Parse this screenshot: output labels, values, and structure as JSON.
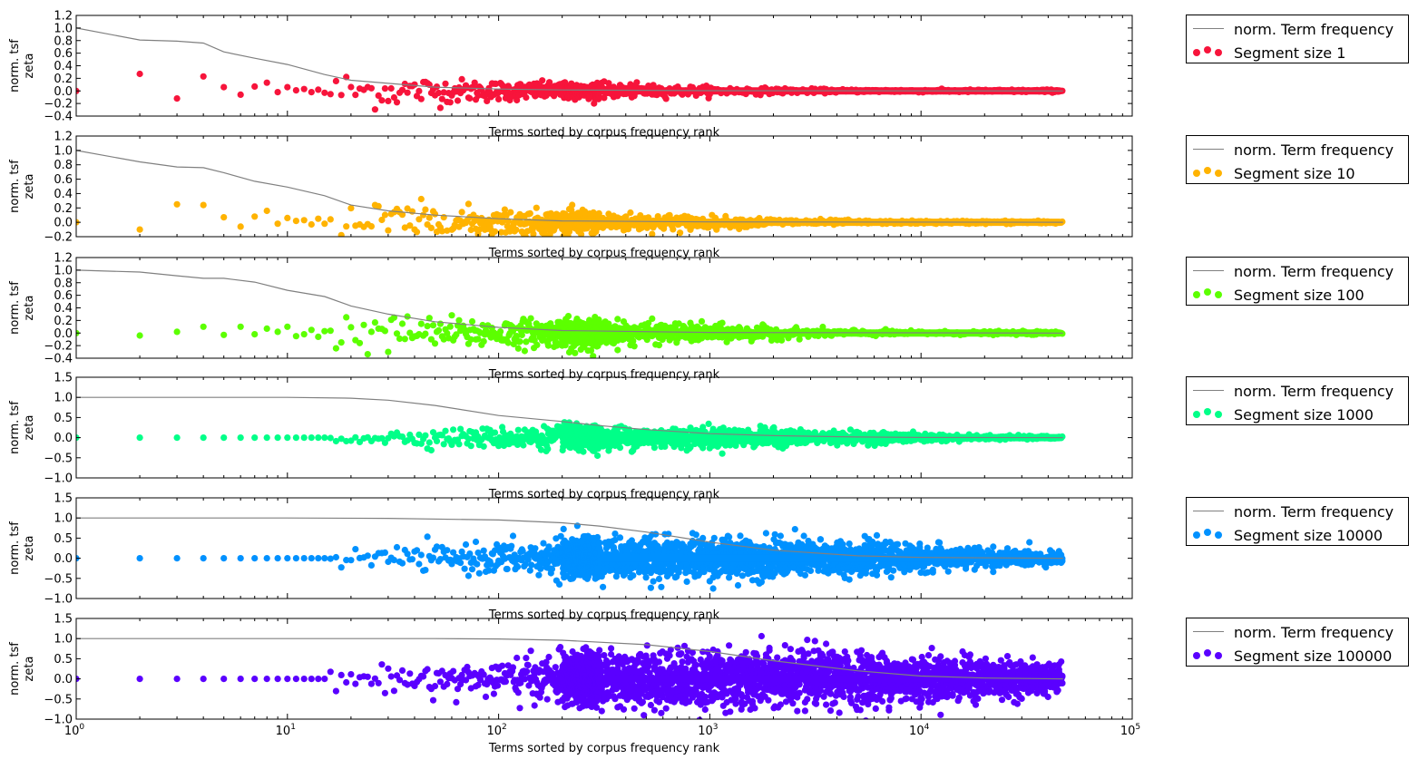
{
  "figure": {
    "xlabel": "Terms sorted by corpus frequency rank",
    "ylabel_line1": "norm. tsf",
    "ylabel_line2": "zeta",
    "x_scale": "log",
    "x_range": [
      1,
      100000
    ],
    "x_ticks": [
      {
        "value": 1,
        "base": "10",
        "exp": "0"
      },
      {
        "value": 10,
        "base": "10",
        "exp": "1"
      },
      {
        "value": 100,
        "base": "10",
        "exp": "2"
      },
      {
        "value": 1000,
        "base": "10",
        "exp": "3"
      },
      {
        "value": 10000,
        "base": "10",
        "exp": "4"
      },
      {
        "value": 100000,
        "base": "10",
        "exp": "5"
      }
    ],
    "line_color": "#808080",
    "line_legend": "norm. Term frequency",
    "n_terms": 47000
  },
  "chart_data": [
    {
      "type": "scatter",
      "series": [
        {
          "name": "norm. Term frequency",
          "kind": "line",
          "x": [
            1,
            2,
            3,
            4,
            5,
            7,
            10,
            15,
            20,
            30,
            50,
            100,
            200,
            1000,
            47000
          ],
          "y": [
            1.0,
            0.81,
            0.79,
            0.76,
            0.62,
            0.52,
            0.42,
            0.26,
            0.17,
            0.12,
            0.06,
            0.03,
            0.015,
            0.003,
            0.0
          ]
        },
        {
          "name": "Segment size 1",
          "kind": "points",
          "color": "#f7143b",
          "x": [
            1,
            2,
            3,
            4,
            5,
            6,
            7,
            8,
            9,
            10,
            11,
            12,
            13,
            14,
            15
          ],
          "y": [
            0.0,
            0.27,
            -0.12,
            0.23,
            0.06,
            -0.06,
            0.07,
            0.13,
            -0.02,
            0.06,
            0.01,
            0.03,
            -0.02,
            0.02,
            -0.03
          ],
          "spread_start": 0.2,
          "spread_peak_x": 60,
          "spread_sigma": 1.0,
          "spread_end": 0.012
        }
      ],
      "ylim": [
        -0.4,
        1.2
      ],
      "yticks": [
        "1.2",
        "1.0",
        "0.8",
        "0.6",
        "0.4",
        "0.2",
        "0.0",
        "−0.2",
        "−0.4"
      ],
      "xlabel": "Terms sorted by corpus frequency rank",
      "ylabel": "norm. tsf zeta"
    },
    {
      "type": "scatter",
      "series": [
        {
          "name": "norm. Term frequency",
          "kind": "line",
          "x": [
            1,
            2,
            3,
            4,
            5,
            7,
            10,
            15,
            20,
            30,
            50,
            100,
            200,
            1000,
            47000
          ],
          "y": [
            1.0,
            0.84,
            0.77,
            0.76,
            0.69,
            0.57,
            0.49,
            0.37,
            0.24,
            0.16,
            0.1,
            0.05,
            0.02,
            0.005,
            0.0
          ]
        },
        {
          "name": "Segment size 10",
          "kind": "points",
          "color": "#ffb300",
          "x": [
            1,
            2,
            3,
            4,
            5,
            6,
            7,
            8,
            9,
            10,
            11,
            12,
            13,
            14,
            15
          ],
          "y": [
            0.0,
            -0.1,
            0.25,
            0.24,
            0.07,
            -0.06,
            0.08,
            0.16,
            -0.02,
            0.06,
            0.02,
            0.03,
            -0.03,
            0.05,
            -0.02
          ],
          "spread_start": 0.2,
          "spread_peak_x": 60,
          "spread_sigma": 1.0,
          "spread_end": 0.012
        }
      ],
      "ylim": [
        -0.2,
        1.2
      ],
      "yticks": [
        "1.2",
        "1.0",
        "0.8",
        "0.6",
        "0.4",
        "0.2",
        "0.0",
        "−0.2"
      ],
      "xlabel": "Terms sorted by corpus frequency rank",
      "ylabel": "norm. tsf zeta"
    },
    {
      "type": "scatter",
      "series": [
        {
          "name": "norm. Term frequency",
          "kind": "line",
          "x": [
            1,
            2,
            3,
            4,
            5,
            7,
            10,
            15,
            20,
            30,
            50,
            100,
            200,
            1000,
            47000
          ],
          "y": [
            1.0,
            0.97,
            0.91,
            0.87,
            0.87,
            0.81,
            0.68,
            0.58,
            0.43,
            0.3,
            0.18,
            0.09,
            0.04,
            0.01,
            0.0
          ]
        },
        {
          "name": "Segment size 100",
          "kind": "points",
          "color": "#5cff00",
          "x": [
            1,
            2,
            3,
            4,
            5,
            6,
            7,
            8,
            9,
            10,
            11,
            12,
            13,
            14,
            15
          ],
          "y": [
            0.0,
            -0.04,
            0.02,
            0.1,
            -0.03,
            0.1,
            -0.02,
            0.07,
            0.02,
            0.1,
            -0.05,
            -0.02,
            0.05,
            -0.06,
            0.03
          ],
          "spread_start": 0.15,
          "spread_peak_x": 100,
          "spread_sigma": 1.0,
          "spread_end": 0.015
        }
      ],
      "ylim": [
        -0.4,
        1.2
      ],
      "yticks": [
        "1.2",
        "1.0",
        "0.8",
        "0.6",
        "0.4",
        "0.2",
        "0.0",
        "−0.2",
        "−0.4"
      ],
      "xlabel": "Terms sorted by corpus frequency rank",
      "ylabel": "norm. tsf zeta"
    },
    {
      "type": "scatter",
      "series": [
        {
          "name": "norm. Term frequency",
          "kind": "line",
          "x": [
            1,
            5,
            10,
            20,
            30,
            50,
            100,
            200,
            300,
            500,
            1000,
            2000,
            5000,
            10000,
            47000
          ],
          "y": [
            1.0,
            1.0,
            1.0,
            0.98,
            0.93,
            0.8,
            0.55,
            0.4,
            0.3,
            0.2,
            0.1,
            0.05,
            0.015,
            0.005,
            0.0
          ]
        },
        {
          "name": "Segment size 1000",
          "kind": "points",
          "color": "#00ff88",
          "x": [
            1,
            2,
            3,
            4,
            5,
            6,
            7,
            8,
            9,
            10,
            11,
            12,
            13,
            14,
            15
          ],
          "y": [
            0.0,
            0.0,
            0.0,
            0.0,
            0.0,
            0.0,
            0.0,
            0.0,
            0.0,
            0.0,
            0.0,
            0.0,
            0.0,
            0.0,
            0.0
          ],
          "spread_start": 0.0,
          "spread_peak_x": 300,
          "spread_sigma": 1.1,
          "spread_end": 0.02
        }
      ],
      "ylim": [
        -1.0,
        1.5
      ],
      "yticks": [
        "1.5",
        "1.0",
        "0.5",
        "0.0",
        "−0.5",
        "−1.0"
      ],
      "xlabel": "Terms sorted by corpus frequency rank",
      "ylabel": "norm. tsf zeta"
    },
    {
      "type": "scatter",
      "series": [
        {
          "name": "norm. Term frequency",
          "kind": "line",
          "x": [
            1,
            5,
            10,
            30,
            100,
            200,
            300,
            500,
            1000,
            2000,
            5000,
            10000,
            47000
          ],
          "y": [
            1.0,
            1.0,
            1.0,
            0.99,
            0.95,
            0.88,
            0.8,
            0.65,
            0.4,
            0.2,
            0.06,
            0.02,
            0.0
          ]
        },
        {
          "name": "Segment size 10000",
          "kind": "points",
          "color": "#0091ff",
          "x": [
            1,
            2,
            3,
            4,
            5,
            6,
            7,
            8,
            9,
            10,
            11,
            12,
            13,
            14,
            15
          ],
          "y": [
            0.0,
            0.0,
            0.0,
            0.0,
            0.0,
            0.0,
            0.0,
            0.0,
            0.0,
            0.0,
            0.0,
            0.0,
            0.0,
            0.0,
            0.0
          ],
          "spread_start": 0.0,
          "spread_peak_x": 700,
          "spread_sigma": 1.2,
          "spread_end": 0.03
        }
      ],
      "ylim": [
        -1.0,
        1.5
      ],
      "yticks": [
        "1.5",
        "1.0",
        "0.5",
        "0.0",
        "−0.5",
        "−1.0"
      ],
      "xlabel": "Terms sorted by corpus frequency rank",
      "ylabel": "norm. tsf zeta"
    },
    {
      "type": "scatter",
      "series": [
        {
          "name": "norm. Term frequency",
          "kind": "line",
          "x": [
            1,
            10,
            50,
            100,
            200,
            500,
            1000,
            2000,
            5000,
            10000,
            20000,
            47000
          ],
          "y": [
            1.0,
            1.0,
            1.0,
            0.99,
            0.96,
            0.85,
            0.68,
            0.45,
            0.2,
            0.07,
            0.02,
            0.0
          ]
        },
        {
          "name": "Segment size 100000",
          "kind": "points",
          "color": "#5a00ff",
          "x": [
            1,
            2,
            3,
            4,
            5,
            6,
            7,
            8,
            9,
            10,
            11,
            12,
            13,
            14,
            15
          ],
          "y": [
            0.0,
            0.0,
            0.0,
            0.0,
            0.0,
            0.0,
            0.0,
            0.0,
            0.0,
            0.0,
            0.0,
            0.0,
            0.0,
            0.0,
            0.0
          ],
          "spread_start": 0.0,
          "spread_peak_x": 1300,
          "spread_sigma": 1.3,
          "spread_end": 0.03
        }
      ],
      "ylim": [
        -1.0,
        1.5
      ],
      "yticks": [
        "1.5",
        "1.0",
        "0.5",
        "0.0",
        "−0.5",
        "−1.0"
      ],
      "xlabel": "Terms sorted by corpus frequency rank",
      "ylabel": "norm. tsf zeta"
    }
  ]
}
